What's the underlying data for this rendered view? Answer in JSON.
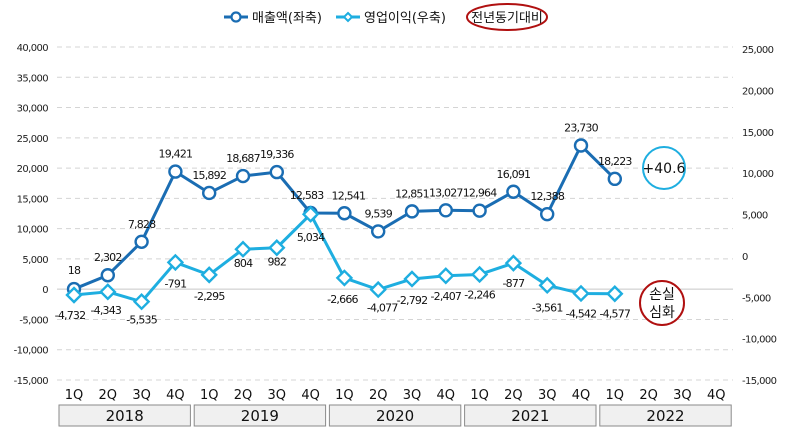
{
  "chart_data": {
    "type": "line",
    "legend": {
      "position": "top-center",
      "items": [
        {
          "name": "매출액(좌축)",
          "color": "#1a6db3",
          "marker": "circle"
        },
        {
          "name": "영업이익(우축)",
          "color": "#1eaee0",
          "marker": "diamond"
        }
      ],
      "highlighted_label": "전년동기대비"
    },
    "x": [
      "1Q",
      "2Q",
      "3Q",
      "4Q",
      "1Q",
      "2Q",
      "3Q",
      "4Q",
      "1Q",
      "2Q",
      "3Q",
      "4Q",
      "1Q",
      "2Q",
      "3Q",
      "4Q",
      "1Q",
      "2Q",
      "3Q",
      "4Q"
    ],
    "year_groups": [
      "2018",
      "2019",
      "2020",
      "2021",
      "2022"
    ],
    "left_axis": {
      "ylim": [
        -15000,
        40000
      ],
      "ticks": [
        -15000,
        -10000,
        -5000,
        0,
        5000,
        10000,
        15000,
        20000,
        25000,
        30000,
        35000,
        40000
      ],
      "tick_labels": [
        "-15,000",
        "-10,000",
        "-5,000",
        "0",
        "5,000",
        "10,000",
        "15,000",
        "20,000",
        "25,000",
        "30,000",
        "35,000",
        "40,000"
      ]
    },
    "right_axis": {
      "ylim": [
        -15000,
        25000
      ],
      "ticks": [
        -15000,
        -10000,
        -5000,
        0,
        5000,
        10000,
        15000,
        20000,
        25000
      ],
      "tick_labels": [
        "-15,000",
        "-10,000",
        "-5,000",
        "0",
        "5,000",
        "10,000",
        "15,000",
        "20,000",
        "25,000"
      ]
    },
    "grid": true,
    "series": [
      {
        "name": "매출액(좌축)",
        "axis": "left",
        "color": "#1a6db3",
        "values": [
          18,
          2302,
          7828,
          19421,
          15892,
          18687,
          19336,
          12583,
          12541,
          9539,
          12851,
          13027,
          12964,
          16091,
          12388,
          23730,
          18223,
          null,
          null,
          null
        ],
        "labels": [
          "18",
          "2,302",
          "7,828",
          "19,421",
          "15,892",
          "18,687",
          "19,336",
          "12,583",
          "12,541",
          "9,539",
          "12,851",
          "13,027",
          "12,964",
          "16,091",
          "12,388",
          "23,730",
          "18,223"
        ]
      },
      {
        "name": "영업이익(우축)",
        "axis": "right",
        "color": "#1eaee0",
        "values": [
          -4732,
          -4343,
          -5535,
          -791,
          -2295,
          804,
          982,
          5034,
          -2666,
          -4077,
          -2792,
          -2407,
          -2246,
          -877,
          -3561,
          -4542,
          -4577,
          null,
          null,
          null
        ],
        "labels": [
          "-4,732",
          "-4,343",
          "-5,535",
          "-791",
          "-2,295",
          "804",
          "982",
          "5,034",
          "-2,666",
          "-4,077",
          "-2,792",
          "-2,407",
          "-2,246",
          "-877",
          "-3,561",
          "-4,542",
          "-4,577"
        ]
      }
    ],
    "annotations": [
      {
        "text": "+40.6",
        "ring_color": "#1eaee0",
        "target_series": "매출액(좌축)"
      },
      {
        "text_lines": [
          "손실",
          "심화"
        ],
        "ring_color": "#b01010",
        "target_series": "영업이익(우축)"
      }
    ]
  }
}
